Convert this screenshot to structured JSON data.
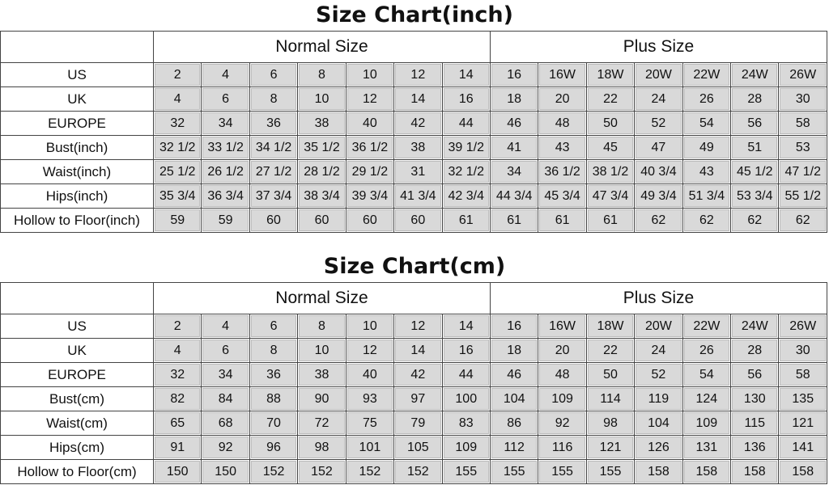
{
  "tables": [
    {
      "title": "Size Chart(inch)",
      "groups": [
        "Normal Size",
        "Plus Size"
      ],
      "rows": [
        {
          "label": "US",
          "values": [
            "2",
            "4",
            "6",
            "8",
            "10",
            "12",
            "14",
            "16",
            "16W",
            "18W",
            "20W",
            "22W",
            "24W",
            "26W"
          ]
        },
        {
          "label": "UK",
          "values": [
            "4",
            "6",
            "8",
            "10",
            "12",
            "14",
            "16",
            "18",
            "20",
            "22",
            "24",
            "26",
            "28",
            "30"
          ]
        },
        {
          "label": "EUROPE",
          "values": [
            "32",
            "34",
            "36",
            "38",
            "40",
            "42",
            "44",
            "46",
            "48",
            "50",
            "52",
            "54",
            "56",
            "58"
          ]
        },
        {
          "label": "Bust(inch)",
          "values": [
            "32 1/2",
            "33 1/2",
            "34 1/2",
            "35 1/2",
            "36 1/2",
            "38",
            "39 1/2",
            "41",
            "43",
            "45",
            "47",
            "49",
            "51",
            "53"
          ]
        },
        {
          "label": "Waist(inch)",
          "values": [
            "25 1/2",
            "26 1/2",
            "27 1/2",
            "28 1/2",
            "29 1/2",
            "31",
            "32 1/2",
            "34",
            "36 1/2",
            "38 1/2",
            "40 3/4",
            "43",
            "45 1/2",
            "47 1/2"
          ]
        },
        {
          "label": "Hips(inch)",
          "values": [
            "35 3/4",
            "36 3/4",
            "37 3/4",
            "38 3/4",
            "39 3/4",
            "41 3/4",
            "42 3/4",
            "44 3/4",
            "45 3/4",
            "47 3/4",
            "49 3/4",
            "51 3/4",
            "53 3/4",
            "55 1/2"
          ]
        },
        {
          "label": "Hollow to Floor(inch)",
          "values": [
            "59",
            "59",
            "60",
            "60",
            "60",
            "60",
            "61",
            "61",
            "61",
            "61",
            "62",
            "62",
            "62",
            "62"
          ]
        }
      ]
    },
    {
      "title": "Size Chart(cm)",
      "groups": [
        "Normal Size",
        "Plus Size"
      ],
      "rows": [
        {
          "label": "US",
          "values": [
            "2",
            "4",
            "6",
            "8",
            "10",
            "12",
            "14",
            "16",
            "16W",
            "18W",
            "20W",
            "22W",
            "24W",
            "26W"
          ]
        },
        {
          "label": "UK",
          "values": [
            "4",
            "6",
            "8",
            "10",
            "12",
            "14",
            "16",
            "18",
            "20",
            "22",
            "24",
            "26",
            "28",
            "30"
          ]
        },
        {
          "label": "EUROPE",
          "values": [
            "32",
            "34",
            "36",
            "38",
            "40",
            "42",
            "44",
            "46",
            "48",
            "50",
            "52",
            "54",
            "56",
            "58"
          ]
        },
        {
          "label": "Bust(cm)",
          "values": [
            "82",
            "84",
            "88",
            "90",
            "93",
            "97",
            "100",
            "104",
            "109",
            "114",
            "119",
            "124",
            "130",
            "135"
          ]
        },
        {
          "label": "Waist(cm)",
          "values": [
            "65",
            "68",
            "70",
            "72",
            "75",
            "79",
            "83",
            "86",
            "92",
            "98",
            "104",
            "109",
            "115",
            "121"
          ]
        },
        {
          "label": "Hips(cm)",
          "values": [
            "91",
            "92",
            "96",
            "98",
            "101",
            "105",
            "109",
            "112",
            "116",
            "121",
            "126",
            "131",
            "136",
            "141"
          ]
        },
        {
          "label": "Hollow to Floor(cm)",
          "values": [
            "150",
            "150",
            "152",
            "152",
            "152",
            "152",
            "155",
            "155",
            "155",
            "155",
            "158",
            "158",
            "158",
            "158"
          ]
        }
      ]
    }
  ]
}
